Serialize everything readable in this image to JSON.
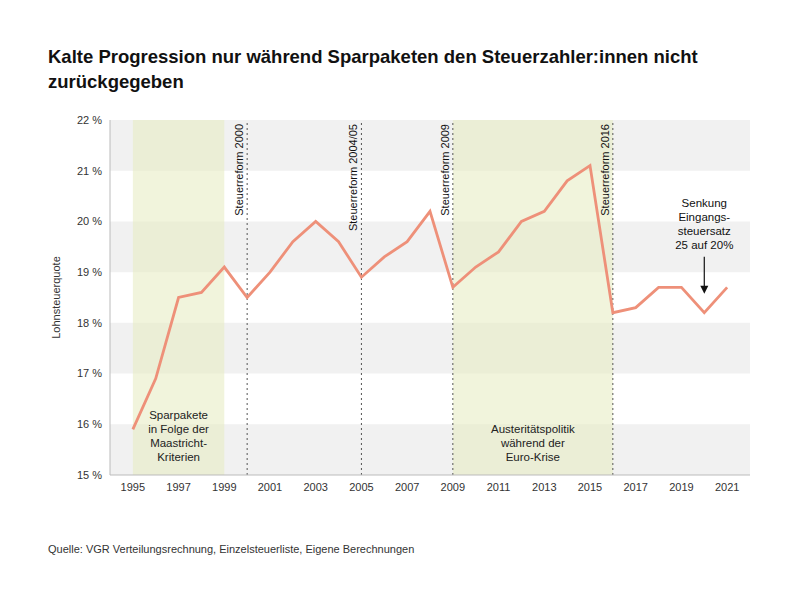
{
  "chart_data": {
    "type": "line",
    "title": "Kalte Progression nur während Sparpaketen den Steuerzahler:innen nicht zurückgegeben",
    "y_label": "Lohnsteuerquote",
    "source": "Quelle: VGR Verteilungsrechnung, Einzelsteuerliste, Eigene Berechnungen",
    "x": [
      1995,
      1996,
      1997,
      1998,
      1999,
      2000,
      2001,
      2002,
      2003,
      2004,
      2005,
      2006,
      2007,
      2008,
      2009,
      2010,
      2011,
      2012,
      2013,
      2014,
      2015,
      2016,
      2017,
      2018,
      2019,
      2020,
      2021
    ],
    "values": [
      15.9,
      16.9,
      18.5,
      18.6,
      19.1,
      18.5,
      19.0,
      19.6,
      20.0,
      19.6,
      18.9,
      19.3,
      19.6,
      20.2,
      18.7,
      19.1,
      19.4,
      20.0,
      20.2,
      20.8,
      21.1,
      18.2,
      18.3,
      18.7,
      18.7,
      18.2,
      18.7
    ],
    "color": "#ee9079",
    "xlim": [
      1994,
      2022
    ],
    "xticks": [
      1995,
      1997,
      1999,
      2001,
      2003,
      2005,
      2007,
      2009,
      2011,
      2013,
      2015,
      2017,
      2019,
      2021
    ],
    "ylim": [
      15,
      22
    ],
    "yticks": [
      {
        "value": 15,
        "label": "15 %"
      },
      {
        "value": 16,
        "label": "16 %"
      },
      {
        "value": 17,
        "label": "17 %"
      },
      {
        "value": 18,
        "label": "18 %"
      },
      {
        "value": 19,
        "label": "19 %"
      },
      {
        "value": 20,
        "label": "20 %"
      },
      {
        "value": 21,
        "label": "21 %"
      },
      {
        "value": 22,
        "label": "22 %"
      }
    ],
    "grid": true,
    "periods": [
      {
        "start": 1995,
        "end": 1999,
        "label": [
          "Sparpakete",
          "in Folge der",
          "Maastricht-",
          "Kriterien"
        ]
      },
      {
        "start": 2009,
        "end": 2016,
        "label": [
          "Austeritätspolitik",
          "während der",
          "Euro-Krise"
        ]
      }
    ],
    "events": [
      {
        "x": 2000,
        "label": "Steuerreform 2000"
      },
      {
        "x": 2005,
        "label": "Steuerreform 2004/05"
      },
      {
        "x": 2009,
        "label": "Steuerreform 2009"
      },
      {
        "x": 2016,
        "label": "Steuerreform 2016"
      }
    ],
    "annotations": [
      {
        "x": 2020,
        "label": [
          "Senkung",
          "Eingangs-",
          "steuersatz",
          "25 auf 20%"
        ]
      }
    ]
  }
}
